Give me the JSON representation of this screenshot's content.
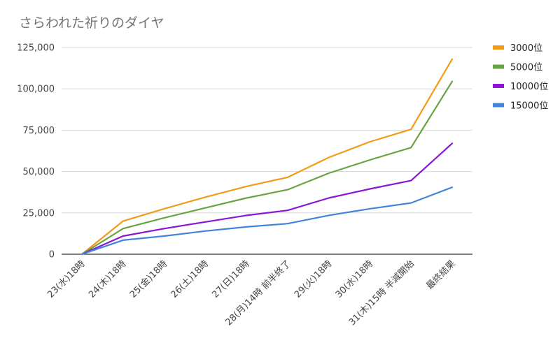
{
  "chart_data": {
    "type": "line",
    "title": "さらわれた祈りのダイヤ",
    "xlabel": "",
    "ylabel": "",
    "categories": [
      "23(水)18時",
      "24(木)18時",
      "25(金)18時",
      "26(土)18時",
      "27(日)18時",
      "28(月)14時 前半終了",
      "29(火)18時",
      "30(水)18時",
      "31(木)15時 半減開始",
      "最終結果"
    ],
    "ylim": [
      0,
      125000
    ],
    "yticks": [
      0,
      25000,
      50000,
      75000,
      100000,
      125000
    ],
    "ytick_labels": [
      "0",
      "25,000",
      "50,000",
      "75,000",
      "100,000",
      "125,000"
    ],
    "grid": true,
    "legend_position": "right",
    "series": [
      {
        "name": "3000位",
        "color": "#f29b16",
        "values": [
          0,
          20000,
          27500,
          34500,
          41000,
          46500,
          58500,
          68000,
          75500,
          118000
        ]
      },
      {
        "name": "5000位",
        "color": "#6aa343",
        "values": [
          0,
          15500,
          22000,
          28000,
          34000,
          39000,
          49000,
          57000,
          64500,
          104500
        ]
      },
      {
        "name": "10000位",
        "color": "#8b16d6",
        "values": [
          0,
          11000,
          15500,
          19500,
          23500,
          26500,
          34000,
          39500,
          44500,
          67000
        ]
      },
      {
        "name": "15000位",
        "color": "#4285d6",
        "values": [
          0,
          8500,
          11000,
          14000,
          16500,
          18500,
          23500,
          27500,
          31000,
          40500
        ]
      }
    ]
  }
}
